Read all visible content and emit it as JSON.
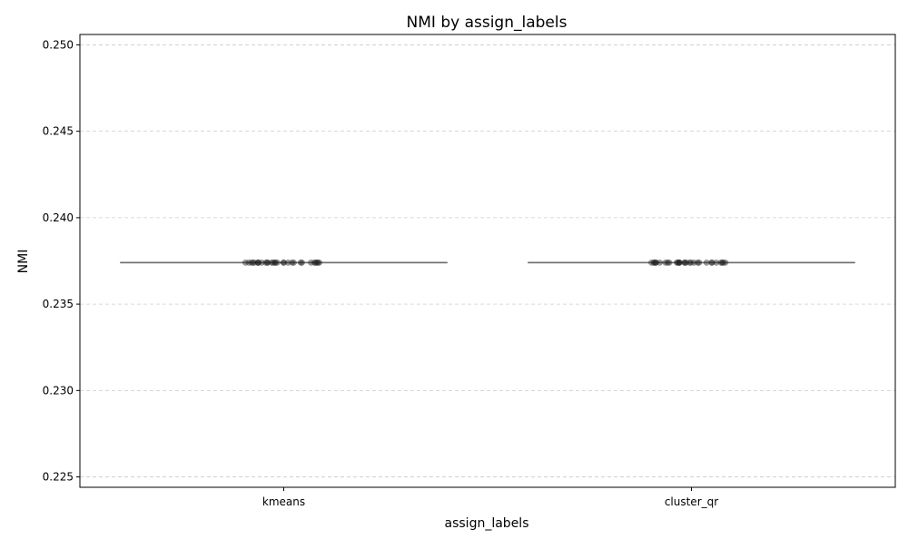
{
  "chart_data": {
    "type": "box",
    "title": "NMI by assign_labels",
    "xlabel": "assign_labels",
    "ylabel": "NMI",
    "categories": [
      "kmeans",
      "cluster_qr"
    ],
    "ylim": [
      0.2244,
      0.2506
    ],
    "yticks": [
      0.225,
      0.23,
      0.235,
      0.24,
      0.245,
      0.25
    ],
    "ytick_labels": [
      "0.225",
      "0.230",
      "0.235",
      "0.240",
      "0.245",
      "0.250"
    ],
    "grid": {
      "y": true,
      "x": false,
      "style": "dashed"
    },
    "legend": "none",
    "series": [
      {
        "category": "kmeans",
        "box": {
          "min": 0.2374,
          "q1": 0.2374,
          "median": 0.2374,
          "q3": 0.2374,
          "max": 0.2374
        },
        "points": [
          0.2374,
          0.2374,
          0.2374,
          0.2374,
          0.2374,
          0.2374,
          0.2374,
          0.2374,
          0.2374,
          0.2374,
          0.2374,
          0.2374,
          0.2374,
          0.2374,
          0.2374,
          0.2374,
          0.2374,
          0.2374,
          0.2374,
          0.2374,
          0.2374,
          0.2374,
          0.2374,
          0.2374,
          0.2374,
          0.2374,
          0.2374,
          0.2374,
          0.2374,
          0.2374
        ]
      },
      {
        "category": "cluster_qr",
        "box": {
          "min": 0.2374,
          "q1": 0.2374,
          "median": 0.2374,
          "q3": 0.2374,
          "max": 0.2374
        },
        "points": [
          0.2374,
          0.2374,
          0.2374,
          0.2374,
          0.2374,
          0.2374,
          0.2374,
          0.2374,
          0.2374,
          0.2374,
          0.2374,
          0.2374,
          0.2374,
          0.2374,
          0.2374,
          0.2374,
          0.2374,
          0.2374,
          0.2374,
          0.2374,
          0.2374,
          0.2374,
          0.2374,
          0.2374,
          0.2374,
          0.2374,
          0.2374,
          0.2374,
          0.2374,
          0.2374
        ]
      }
    ],
    "colors": {
      "box_line": "#707070",
      "point": "#222222",
      "grid": "#cccccc",
      "axis": "#000000"
    }
  }
}
